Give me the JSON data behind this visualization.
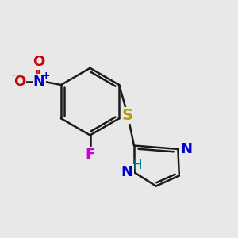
{
  "background_color": "#e8e8e8",
  "bond_color": "#1a1a1a",
  "bond_width": 1.8,
  "figsize": [
    3.0,
    3.0
  ],
  "dpi": 100,
  "colors": {
    "S": "#b8a000",
    "N": "#0000cc",
    "H": "#008080",
    "O": "#cc0000",
    "F": "#cc00cc",
    "bond": "#1a1a1a"
  }
}
